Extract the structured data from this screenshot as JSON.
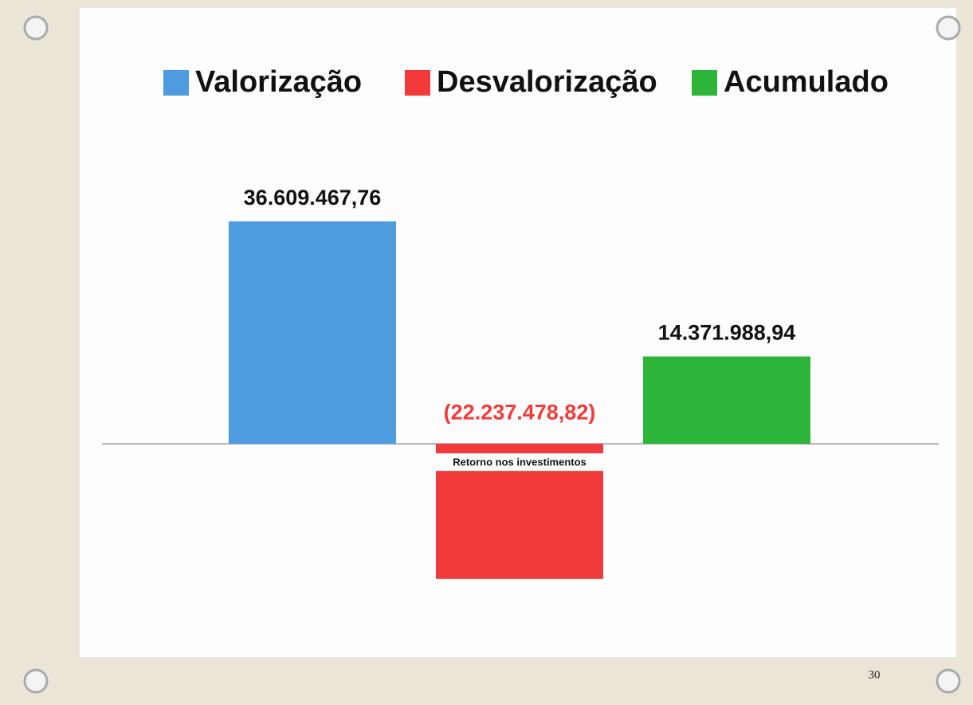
{
  "chart_data": {
    "type": "bar",
    "categories": [
      "Retorno nos investimentos"
    ],
    "series": [
      {
        "name": "Valorização",
        "color": "#4f9be0",
        "values": [
          36609467.76
        ],
        "value_labels": [
          "36.609.467,76"
        ]
      },
      {
        "name": "Desvalorização",
        "color": "#f23a3a",
        "values": [
          -22237478.82
        ],
        "value_labels": [
          "(22.237.478,82)"
        ]
      },
      {
        "name": "Acumulado",
        "color": "#2db53a",
        "values": [
          14371988.94
        ],
        "value_labels": [
          "14.371.988,94"
        ]
      }
    ],
    "ylim": [
      -30000000,
      40000000
    ],
    "legend": "top"
  },
  "page_number": "30"
}
